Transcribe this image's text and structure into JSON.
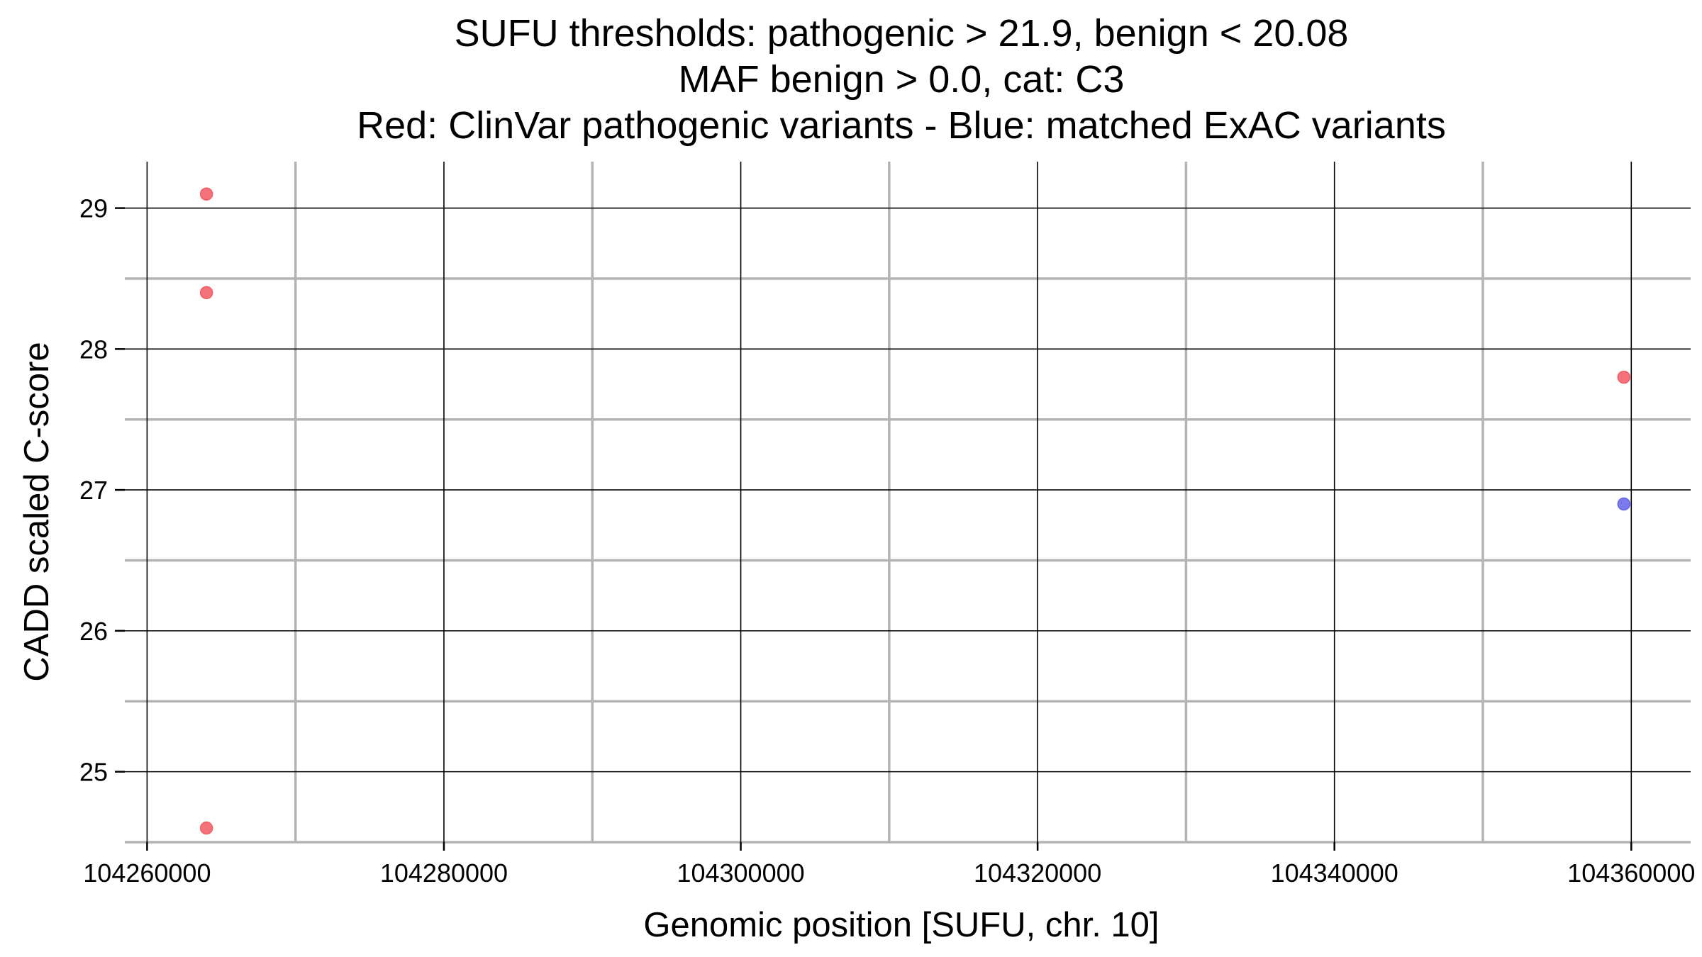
{
  "chart_data": {
    "type": "scatter",
    "title_lines": [
      "SUFU thresholds: pathogenic > 21.9, benign < 20.08",
      "MAF benign > 0.0, cat: C3",
      "Red: ClinVar pathogenic variants - Blue: matched ExAC variants"
    ],
    "xlabel": "Genomic position [SUFU, chr. 10]",
    "ylabel": "CADD scaled C-score",
    "xlim": [
      104258500,
      104364000
    ],
    "ylim": [
      24.5,
      29.33
    ],
    "x_ticks": [
      104260000,
      104280000,
      104300000,
      104320000,
      104340000,
      104360000
    ],
    "x_tick_labels": [
      "104260000",
      "104280000",
      "104300000",
      "104320000",
      "104340000",
      "104360000"
    ],
    "y_ticks": [
      25,
      26,
      27,
      28,
      29
    ],
    "y_tick_labels": [
      "25",
      "26",
      "27",
      "28",
      "29"
    ],
    "x_minor_grid": [
      104270000,
      104290000,
      104310000,
      104330000,
      104350000
    ],
    "y_minor_grid": [
      24.5,
      25.5,
      26.5,
      27.5,
      28.5
    ],
    "grid": true,
    "series": [
      {
        "color": "#f25b63",
        "points": [
          {
            "x": 104264000,
            "y": 29.1
          },
          {
            "x": 104264000,
            "y": 28.4
          },
          {
            "x": 104264000,
            "y": 24.6
          },
          {
            "x": 104359500,
            "y": 27.8
          }
        ]
      },
      {
        "color": "#6464e8",
        "points": [
          {
            "x": 104359500,
            "y": 26.9
          }
        ]
      }
    ],
    "colors": {
      "major_grid": "#000000",
      "minor_grid": "#b3b3b3",
      "background": "#ffffff"
    }
  }
}
